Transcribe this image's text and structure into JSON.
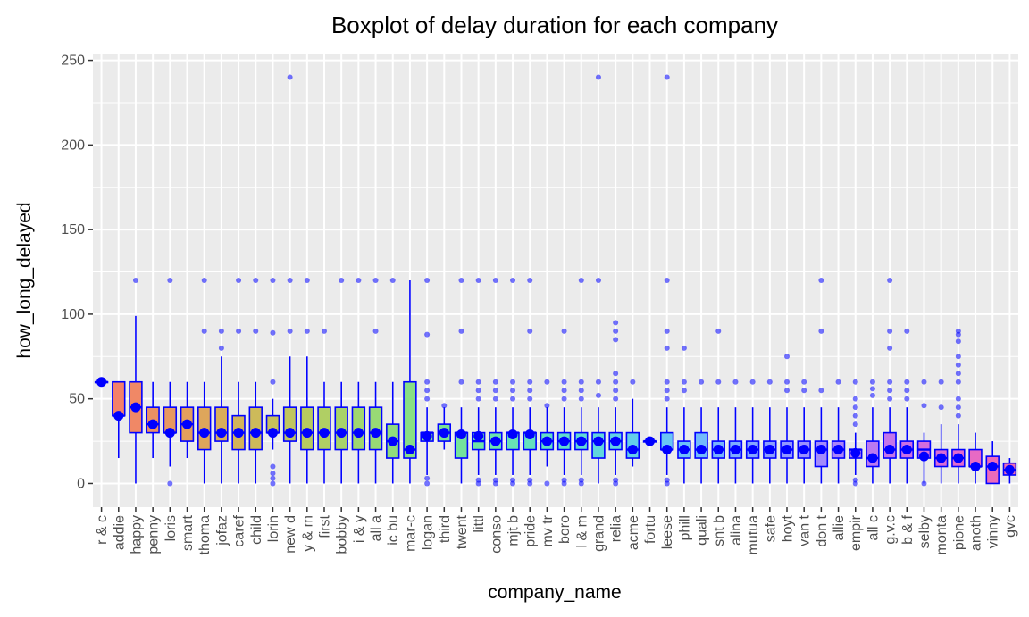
{
  "chart_data": {
    "type": "boxplot",
    "title": "Boxplot of delay duration for each company",
    "xlabel": "company_name",
    "ylabel": "how_long_delayed",
    "ylim": [
      -14,
      254
    ],
    "yticks": [
      0,
      50,
      100,
      150,
      200,
      250
    ],
    "grid": true,
    "legend": "none",
    "colors": {
      "panel": "#ebebeb",
      "grid_major": "#ffffff",
      "box_border": "#0000ff",
      "mean_point": "#0000ff",
      "outlier": "#0000ff"
    },
    "categories": [
      "r & c",
      "addie",
      "happy",
      "penny",
      "loris",
      "smart",
      "thoma",
      "jofaz",
      "caref",
      "child",
      "lorin",
      "new d",
      "y & m",
      "first",
      "bobby",
      "i & y",
      "all a",
      "ic bu",
      "mar-c",
      "logan",
      "third",
      "twent",
      "littl",
      "conso",
      "mjt b",
      "pride",
      "mv tr",
      "boro",
      "l & m",
      "grand",
      "relia",
      "acme",
      "fortu",
      "leese",
      "phill",
      "quali",
      "snt b",
      "alina",
      "mutua",
      "safe",
      "hoyt",
      "van t",
      "don t",
      "allie",
      "empir",
      "all c",
      "g.v.c",
      "b & f",
      "selby",
      "monta",
      "pione",
      "anoth",
      "vinny",
      "gvc"
    ],
    "boxes": [
      {
        "q1": 60,
        "median": 60,
        "q3": 60,
        "lo": 60,
        "hi": 60,
        "mean": 60,
        "fill": "#f8766d",
        "outliers": []
      },
      {
        "q1": 40,
        "median": 40,
        "q3": 60,
        "lo": 15,
        "hi": 60,
        "mean": 40,
        "fill": "#f4806a",
        "outliers": []
      },
      {
        "q1": 30,
        "median": 45,
        "q3": 60,
        "lo": 0,
        "hi": 99,
        "mean": 45,
        "fill": "#f08866",
        "outliers": [
          120
        ]
      },
      {
        "q1": 30,
        "median": 35,
        "q3": 45,
        "lo": 15,
        "hi": 60,
        "mean": 35,
        "fill": "#ec9063",
        "outliers": []
      },
      {
        "q1": 30,
        "median": 30,
        "q3": 45,
        "lo": 10,
        "hi": 60,
        "mean": 30,
        "fill": "#e89860",
        "outliers": [
          0,
          120
        ]
      },
      {
        "q1": 25,
        "median": 35,
        "q3": 45,
        "lo": 15,
        "hi": 60,
        "mean": 35,
        "fill": "#e39f5d",
        "outliers": []
      },
      {
        "q1": 20,
        "median": 30,
        "q3": 45,
        "lo": 0,
        "hi": 60,
        "mean": 30,
        "fill": "#dea65b",
        "outliers": [
          90,
          120
        ]
      },
      {
        "q1": 25,
        "median": 30,
        "q3": 45,
        "lo": 0,
        "hi": 75,
        "mean": 30,
        "fill": "#d9ad5a",
        "outliers": [
          80,
          90
        ]
      },
      {
        "q1": 20,
        "median": 30,
        "q3": 40,
        "lo": 0,
        "hi": 60,
        "mean": 30,
        "fill": "#d3b459",
        "outliers": [
          90,
          120
        ]
      },
      {
        "q1": 20,
        "median": 30,
        "q3": 45,
        "lo": 0,
        "hi": 60,
        "mean": 30,
        "fill": "#cdba5a",
        "outliers": [
          90,
          120
        ]
      },
      {
        "q1": 30,
        "median": 30,
        "q3": 40,
        "lo": 20,
        "hi": 50,
        "mean": 30,
        "fill": "#c7c05b",
        "outliers": [
          0,
          3,
          6,
          10,
          60,
          89,
          120
        ]
      },
      {
        "q1": 25,
        "median": 30,
        "q3": 45,
        "lo": 0,
        "hi": 75,
        "mean": 30,
        "fill": "#c0c55d",
        "outliers": [
          90,
          120,
          240
        ]
      },
      {
        "q1": 20,
        "median": 30,
        "q3": 45,
        "lo": 0,
        "hi": 75,
        "mean": 30,
        "fill": "#b8ca60",
        "outliers": [
          90,
          120
        ]
      },
      {
        "q1": 20,
        "median": 30,
        "q3": 45,
        "lo": 0,
        "hi": 60,
        "mean": 30,
        "fill": "#b0cf64",
        "outliers": [
          90
        ]
      },
      {
        "q1": 20,
        "median": 30,
        "q3": 45,
        "lo": 0,
        "hi": 60,
        "mean": 30,
        "fill": "#a8d369",
        "outliers": [
          120
        ]
      },
      {
        "q1": 20,
        "median": 30,
        "q3": 45,
        "lo": 0,
        "hi": 60,
        "mean": 30,
        "fill": "#a0d76f",
        "outliers": [
          120
        ]
      },
      {
        "q1": 20,
        "median": 30,
        "q3": 45,
        "lo": 0,
        "hi": 60,
        "mean": 30,
        "fill": "#98da75",
        "outliers": [
          90,
          120
        ]
      },
      {
        "q1": 15,
        "median": 25,
        "q3": 35,
        "lo": 0,
        "hi": 60,
        "mean": 25,
        "fill": "#90dd7c",
        "outliers": [
          120
        ]
      },
      {
        "q1": 15,
        "median": 20,
        "q3": 60,
        "lo": 0,
        "hi": 120,
        "mean": 20,
        "fill": "#88df84",
        "outliers": []
      },
      {
        "q1": 25,
        "median": 30,
        "q3": 30,
        "lo": 5,
        "hi": 45,
        "mean": 28,
        "fill": "#80e18c",
        "outliers": [
          0,
          3,
          50,
          55,
          60,
          88,
          120
        ]
      },
      {
        "q1": 25,
        "median": 30,
        "q3": 35,
        "lo": 20,
        "hi": 45,
        "mean": 30,
        "fill": "#7ae294",
        "outliers": [
          46
        ]
      },
      {
        "q1": 15,
        "median": 30,
        "q3": 30,
        "lo": 0,
        "hi": 45,
        "mean": 29,
        "fill": "#74e39c",
        "outliers": [
          60,
          90,
          120
        ]
      },
      {
        "q1": 20,
        "median": 25,
        "q3": 30,
        "lo": 5,
        "hi": 45,
        "mean": 28,
        "fill": "#6fe3a5",
        "outliers": [
          0,
          2,
          50,
          55,
          60,
          120
        ]
      },
      {
        "q1": 20,
        "median": 25,
        "q3": 30,
        "lo": 5,
        "hi": 45,
        "mean": 25,
        "fill": "#6be3ad",
        "outliers": [
          0,
          2,
          50,
          55,
          60,
          120
        ]
      },
      {
        "q1": 20,
        "median": 30,
        "q3": 30,
        "lo": 5,
        "hi": 45,
        "mean": 29,
        "fill": "#67e2b6",
        "outliers": [
          0,
          2,
          50,
          55,
          60,
          120
        ]
      },
      {
        "q1": 20,
        "median": 30,
        "q3": 30,
        "lo": 5,
        "hi": 45,
        "mean": 29,
        "fill": "#64e1be",
        "outliers": [
          0,
          2,
          50,
          55,
          60,
          90,
          120
        ]
      },
      {
        "q1": 20,
        "median": 25,
        "q3": 30,
        "lo": 10,
        "hi": 45,
        "mean": 25,
        "fill": "#62dfc6",
        "outliers": [
          0,
          46,
          60
        ]
      },
      {
        "q1": 20,
        "median": 25,
        "q3": 30,
        "lo": 5,
        "hi": 45,
        "mean": 25,
        "fill": "#61ddce",
        "outliers": [
          0,
          2,
          50,
          55,
          60,
          90
        ]
      },
      {
        "q1": 20,
        "median": 25,
        "q3": 30,
        "lo": 5,
        "hi": 45,
        "mean": 25,
        "fill": "#61dad6",
        "outliers": [
          0,
          2,
          50,
          55,
          60,
          120
        ]
      },
      {
        "q1": 15,
        "median": 25,
        "q3": 30,
        "lo": 0,
        "hi": 45,
        "mean": 25,
        "fill": "#61d7dd",
        "outliers": [
          52,
          60,
          120,
          240
        ]
      },
      {
        "q1": 20,
        "median": 25,
        "q3": 30,
        "lo": 5,
        "hi": 45,
        "mean": 25,
        "fill": "#62d3e4",
        "outliers": [
          0,
          2,
          50,
          55,
          60,
          65,
          85,
          90,
          95
        ]
      },
      {
        "q1": 15,
        "median": 20,
        "q3": 30,
        "lo": 10,
        "hi": 50,
        "mean": 20,
        "fill": "#64cfea",
        "outliers": [
          60
        ]
      },
      {
        "q1": 25,
        "median": 25,
        "q3": 25,
        "lo": 24,
        "hi": 26,
        "mean": 25,
        "fill": "#66caf0",
        "outliers": []
      },
      {
        "q1": 20,
        "median": 20,
        "q3": 30,
        "lo": 5,
        "hi": 45,
        "mean": 20,
        "fill": "#69c5f5",
        "outliers": [
          0,
          2,
          50,
          55,
          60,
          80,
          90,
          120,
          240
        ]
      },
      {
        "q1": 15,
        "median": 20,
        "q3": 25,
        "lo": 0,
        "hi": 45,
        "mean": 20,
        "fill": "#6dc0f9",
        "outliers": [
          55,
          60,
          80
        ]
      },
      {
        "q1": 15,
        "median": 20,
        "q3": 30,
        "lo": 0,
        "hi": 45,
        "mean": 20,
        "fill": "#72bafc",
        "outliers": [
          60
        ]
      },
      {
        "q1": 15,
        "median": 20,
        "q3": 25,
        "lo": 0,
        "hi": 45,
        "mean": 20,
        "fill": "#77b4fe",
        "outliers": [
          60,
          90
        ]
      },
      {
        "q1": 15,
        "median": 20,
        "q3": 25,
        "lo": 0,
        "hi": 45,
        "mean": 20,
        "fill": "#7dadff",
        "outliers": [
          60
        ]
      },
      {
        "q1": 15,
        "median": 20,
        "q3": 25,
        "lo": 0,
        "hi": 45,
        "mean": 20,
        "fill": "#84a6ff",
        "outliers": [
          60
        ]
      },
      {
        "q1": 15,
        "median": 20,
        "q3": 25,
        "lo": 0,
        "hi": 45,
        "mean": 20,
        "fill": "#8b9fff",
        "outliers": [
          60
        ]
      },
      {
        "q1": 15,
        "median": 20,
        "q3": 25,
        "lo": 0,
        "hi": 45,
        "mean": 20,
        "fill": "#9298ff",
        "outliers": [
          55,
          60,
          75
        ]
      },
      {
        "q1": 15,
        "median": 20,
        "q3": 25,
        "lo": 0,
        "hi": 45,
        "mean": 20,
        "fill": "#9a91fe",
        "outliers": [
          55,
          60
        ]
      },
      {
        "q1": 10,
        "median": 20,
        "q3": 25,
        "lo": 0,
        "hi": 45,
        "mean": 20,
        "fill": "#a28afc",
        "outliers": [
          55,
          90,
          120
        ]
      },
      {
        "q1": 15,
        "median": 20,
        "q3": 25,
        "lo": 0,
        "hi": 45,
        "mean": 20,
        "fill": "#ab84f9",
        "outliers": [
          60
        ]
      },
      {
        "q1": 15,
        "median": 20,
        "q3": 20,
        "lo": 5,
        "hi": 30,
        "mean": 18,
        "fill": "#b37ef5",
        "outliers": [
          0,
          2,
          35,
          40,
          45,
          50,
          60
        ]
      },
      {
        "q1": 10,
        "median": 15,
        "q3": 25,
        "lo": 0,
        "hi": 45,
        "mean": 15,
        "fill": "#bb79f0",
        "outliers": [
          52,
          56,
          60
        ]
      },
      {
        "q1": 15,
        "median": 20,
        "q3": 30,
        "lo": 0,
        "hi": 45,
        "mean": 20,
        "fill": "#c374ea",
        "outliers": [
          50,
          55,
          60,
          80,
          90,
          120
        ]
      },
      {
        "q1": 15,
        "median": 20,
        "q3": 25,
        "lo": 0,
        "hi": 45,
        "mean": 20,
        "fill": "#cb70e4",
        "outliers": [
          50,
          55,
          60,
          90
        ]
      },
      {
        "q1": 15,
        "median": 20,
        "q3": 25,
        "lo": 0,
        "hi": 30,
        "mean": 16,
        "fill": "#d36ddd",
        "outliers": [
          0,
          46,
          60
        ]
      },
      {
        "q1": 10,
        "median": 15,
        "q3": 20,
        "lo": 0,
        "hi": 35,
        "mean": 15,
        "fill": "#da6bd5",
        "outliers": [
          45,
          60
        ]
      },
      {
        "q1": 10,
        "median": 15,
        "q3": 20,
        "lo": 0,
        "hi": 35,
        "mean": 15,
        "fill": "#e16acd",
        "outliers": [
          40,
          45,
          50,
          60,
          65,
          70,
          75,
          84,
          88,
          90
        ]
      },
      {
        "q1": 10,
        "median": 10,
        "q3": 20,
        "lo": 0,
        "hi": 30,
        "mean": 10,
        "fill": "#e76ac4",
        "outliers": []
      },
      {
        "q1": 0,
        "median": 10,
        "q3": 16,
        "lo": 0,
        "hi": 25,
        "mean": 10,
        "fill": "#ec6bba",
        "outliers": []
      },
      {
        "q1": 5,
        "median": 8,
        "q3": 12,
        "lo": 0,
        "hi": 15,
        "mean": 8,
        "fill": "#f06db0",
        "outliers": []
      }
    ]
  }
}
